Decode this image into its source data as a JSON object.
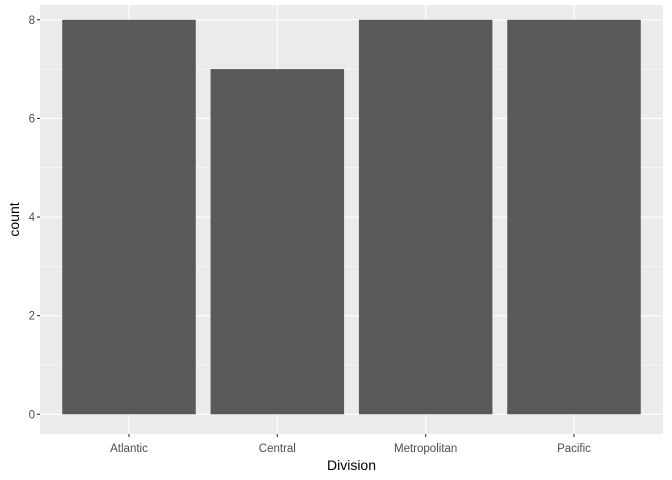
{
  "chart_data": {
    "type": "bar",
    "categories": [
      "Atlantic",
      "Central",
      "Metropolitan",
      "Pacific"
    ],
    "values": [
      8,
      7,
      8,
      8
    ],
    "xlabel": "Division",
    "ylabel": "count",
    "ylim": [
      -0.4,
      8.3
    ],
    "yticks": [
      0,
      2,
      4,
      6,
      8
    ],
    "grid": true,
    "legend": "none",
    "colors": {
      "bar": "#595959",
      "panel": "#ebebeb",
      "gridline": "#ffffff",
      "tick_label": "#4d4d4d",
      "axis_title": "#000000"
    }
  }
}
